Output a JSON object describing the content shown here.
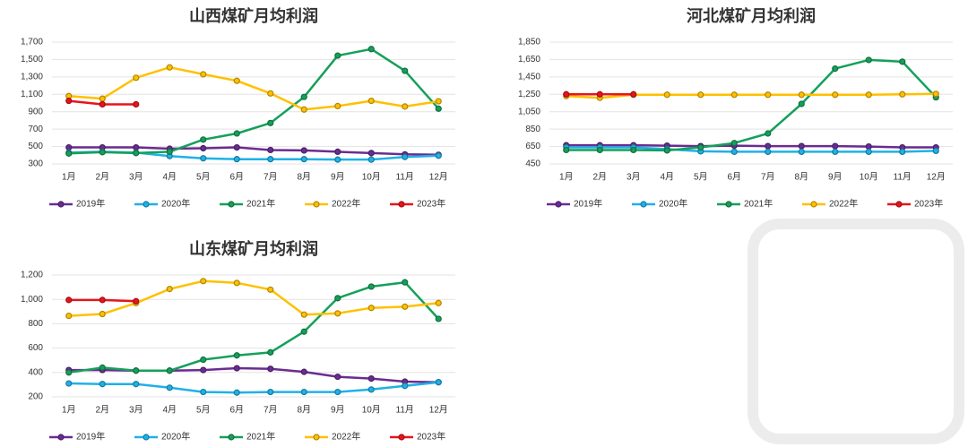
{
  "chart_data": [
    {
      "type": "line",
      "title": "山西煤矿月均利润",
      "categories": [
        "1月",
        "2月",
        "3月",
        "4月",
        "5月",
        "6月",
        "7月",
        "8月",
        "9月",
        "10月",
        "11月",
        "12月"
      ],
      "ylim": [
        300,
        1700
      ],
      "yticks": [
        300,
        500,
        700,
        900,
        {
          "value": 1100,
          "label": "1,100"
        },
        {
          "value": 1300,
          "label": "1,300"
        },
        {
          "value": 1500,
          "label": "1,500"
        },
        {
          "value": 1700,
          "label": "1,700"
        }
      ],
      "grid": true,
      "series": [
        {
          "name": "2019年",
          "color": "#6a2c91",
          "values": [
            490,
            490,
            490,
            475,
            480,
            490,
            460,
            455,
            440,
            425,
            410,
            405
          ]
        },
        {
          "name": "2020年",
          "color": "#1fb1e6",
          "values": [
            430,
            440,
            430,
            390,
            365,
            355,
            355,
            355,
            350,
            350,
            380,
            395
          ]
        },
        {
          "name": "2021年",
          "color": "#15a05a",
          "values": [
            420,
            435,
            425,
            440,
            580,
            650,
            770,
            1070,
            1545,
            1620,
            1370,
            935
          ]
        },
        {
          "name": "2022年",
          "color": "#ffc000",
          "values": [
            1080,
            1050,
            1290,
            1410,
            1330,
            1255,
            1110,
            925,
            965,
            1025,
            960,
            1020
          ]
        },
        {
          "name": "2023年",
          "color": "#e8141c",
          "values": [
            1025,
            985,
            985,
            null,
            null,
            null,
            null,
            null,
            null,
            null,
            null,
            null
          ]
        }
      ]
    },
    {
      "type": "line",
      "title": "河北煤矿月均利润",
      "categories": [
        "1月",
        "2月",
        "3月",
        "4月",
        "5月",
        "6月",
        "7月",
        "8月",
        "9月",
        "10月",
        "11月",
        "12月"
      ],
      "ylim": [
        450,
        1850
      ],
      "yticks": [
        450,
        650,
        850,
        {
          "value": 1050,
          "label": "1,050"
        },
        {
          "value": 1250,
          "label": "1,250"
        },
        {
          "value": 1450,
          "label": "1,450"
        },
        {
          "value": 1650,
          "label": "1,650"
        },
        {
          "value": 1850,
          "label": "1,850"
        }
      ],
      "grid": true,
      "series": [
        {
          "name": "2019年",
          "color": "#6a2c91",
          "values": [
            665,
            665,
            665,
            660,
            655,
            660,
            655,
            655,
            655,
            650,
            640,
            640
          ]
        },
        {
          "name": "2020年",
          "color": "#1fb1e6",
          "values": [
            640,
            640,
            640,
            620,
            595,
            590,
            590,
            590,
            590,
            590,
            590,
            600
          ]
        },
        {
          "name": "2021年",
          "color": "#15a05a",
          "values": [
            610,
            610,
            610,
            605,
            640,
            690,
            800,
            1140,
            1545,
            1645,
            1625,
            1215
          ]
        },
        {
          "name": "2022年",
          "color": "#ffc000",
          "values": [
            1230,
            1210,
            1245,
            1245,
            1245,
            1245,
            1245,
            1245,
            1245,
            1245,
            1250,
            1255
          ]
        },
        {
          "name": "2023年",
          "color": "#e8141c",
          "values": [
            1250,
            1250,
            1250,
            null,
            null,
            null,
            null,
            null,
            null,
            null,
            null,
            null
          ]
        }
      ]
    },
    {
      "type": "line",
      "title": "山东煤矿月均利润",
      "categories": [
        "1月",
        "2月",
        "3月",
        "4月",
        "5月",
        "6月",
        "7月",
        "8月",
        "9月",
        "10月",
        "11月",
        "12月"
      ],
      "ylim": [
        200,
        1200
      ],
      "yticks": [
        200,
        400,
        600,
        800,
        {
          "value": 1000,
          "label": "1,000"
        },
        {
          "value": 1200,
          "label": "1,200"
        }
      ],
      "grid": true,
      "series": [
        {
          "name": "2019年",
          "color": "#6a2c91",
          "values": [
            420,
            420,
            415,
            415,
            420,
            435,
            430,
            405,
            365,
            350,
            325,
            320
          ]
        },
        {
          "name": "2020年",
          "color": "#1fb1e6",
          "values": [
            310,
            305,
            305,
            275,
            240,
            235,
            240,
            240,
            240,
            260,
            290,
            320
          ]
        },
        {
          "name": "2021年",
          "color": "#15a05a",
          "values": [
            400,
            440,
            415,
            415,
            505,
            540,
            565,
            735,
            1010,
            1105,
            1140,
            840
          ]
        },
        {
          "name": "2022年",
          "color": "#ffc000",
          "values": [
            865,
            880,
            970,
            1085,
            1150,
            1135,
            1080,
            875,
            885,
            930,
            940,
            970
          ]
        },
        {
          "name": "2023年",
          "color": "#e8141c",
          "values": [
            995,
            995,
            985,
            null,
            null,
            null,
            null,
            null,
            null,
            null,
            null,
            null
          ]
        }
      ]
    }
  ]
}
